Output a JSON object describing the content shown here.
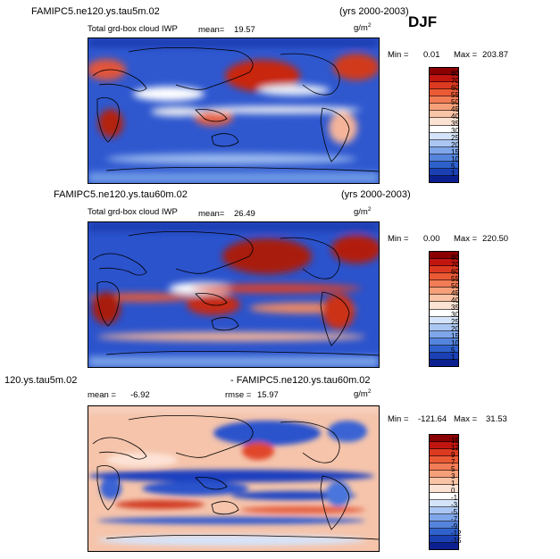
{
  "header": {
    "season": "DJF"
  },
  "panels": [
    {
      "case_left": "FAMIPC5.ne120.ys.tau5m.02",
      "case_right": "(yrs 2000-2003)",
      "var_label": "Total grd-box cloud IWP",
      "mean_label": "mean=",
      "mean_value": "19.57",
      "units_base": "g/m",
      "units_exp": "2",
      "min_label": "Min =",
      "min_value": "0.01",
      "max_label": "Max =",
      "max_value": "203.87"
    },
    {
      "case_left": "FAMIPC5.ne120.ys.tau60m.02",
      "case_right": "(yrs 2000-2003)",
      "var_label": "Total grd-box cloud IWP",
      "mean_label": "mean=",
      "mean_value": "26.49",
      "units_base": "g/m",
      "units_exp": "2",
      "min_label": "Min =",
      "min_value": "0.00",
      "max_label": "Max =",
      "max_value": "220.50"
    },
    {
      "case_left": "120.ys.tau5m.02",
      "case_right": "- FAMIPC5.ne120.ys.tau60m.02",
      "mean_label": "mean =",
      "mean_value": "-6.92",
      "rmse_label": "rmse =",
      "rmse_value": "15.97",
      "units_base": "g/m",
      "units_exp": "2",
      "min_label": "Min =",
      "min_value": "-121.64",
      "max_label": "Max =",
      "max_value": "31.53"
    }
  ],
  "chart_data": [
    {
      "type": "heatmap",
      "title": "FAMIPC5.ne120.ys.tau5m.02",
      "variable": "Total grd-box cloud IWP",
      "units": "g/m2",
      "mean": 19.57,
      "min": 0.01,
      "max": 203.87,
      "colorbar_levels": [
        80,
        70,
        60,
        55,
        50,
        45,
        40,
        35,
        30,
        25,
        20,
        15,
        10,
        5,
        1
      ],
      "colorbar_colors": [
        "#8b0000",
        "#c0160f",
        "#dc3a20",
        "#ea5a35",
        "#f27c55",
        "#f6a07a",
        "#f9c3a5",
        "#fbe2d2",
        "#ffffff",
        "#d4e3fa",
        "#aac6f3",
        "#7ea6ea",
        "#5584dc",
        "#2e61cc",
        "#1a40b3",
        "#0c1f8f"
      ]
    },
    {
      "type": "heatmap",
      "title": "FAMIPC5.ne120.ys.tau60m.02",
      "variable": "Total grd-box cloud IWP",
      "units": "g/m2",
      "mean": 26.49,
      "min": 0.0,
      "max": 220.5,
      "colorbar_levels": [
        80,
        70,
        60,
        55,
        50,
        45,
        40,
        35,
        30,
        25,
        20,
        15,
        10,
        5,
        1
      ],
      "colorbar_colors": [
        "#8b0000",
        "#c0160f",
        "#dc3a20",
        "#ea5a35",
        "#f27c55",
        "#f6a07a",
        "#f9c3a5",
        "#fbe2d2",
        "#ffffff",
        "#d4e3fa",
        "#aac6f3",
        "#7ea6ea",
        "#5584dc",
        "#2e61cc",
        "#1a40b3",
        "#0c1f8f"
      ]
    },
    {
      "type": "heatmap",
      "title": "120.ys.tau5m.02 - FAMIPC5.ne120.ys.tau60m.02",
      "units": "g/m2",
      "mean": -6.92,
      "rmse": 15.97,
      "min": -121.64,
      "max": 31.53,
      "colorbar_levels": [
        15,
        12,
        9,
        7,
        5,
        3,
        1,
        0,
        -1,
        -3,
        -5,
        -7,
        -9,
        -12,
        -15
      ],
      "colorbar_colors": [
        "#8b0000",
        "#c0160f",
        "#dc3a20",
        "#ea5a35",
        "#f27c55",
        "#f6a07a",
        "#f9c3a5",
        "#fbe2d2",
        "#ffffff",
        "#d4e3fa",
        "#aac6f3",
        "#7ea6ea",
        "#5584dc",
        "#2e61cc",
        "#1a40b3",
        "#0c1f8f"
      ]
    }
  ]
}
